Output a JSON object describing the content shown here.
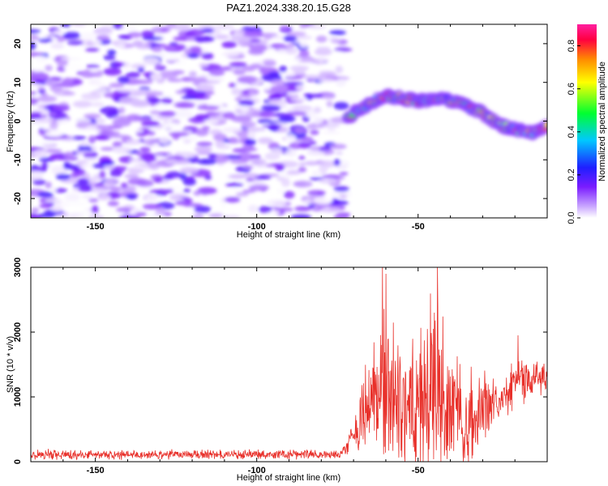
{
  "chart_data": [
    {
      "type": "heatmap",
      "title": "PAZ1.2024.338.20.15.G28",
      "xlabel": "Height of straight line (km)",
      "ylabel": "Frequency (Hz)",
      "xlim": [
        -170,
        -10
      ],
      "ylim": [
        -25,
        25
      ],
      "xticks": [
        -150,
        -100,
        -50
      ],
      "yticks": [
        -20,
        -10,
        0,
        10,
        20
      ],
      "colorbar": {
        "label": "Normalized spectral amplitude",
        "range": [
          0.0,
          0.9
        ],
        "ticks": [
          "0.0",
          "0.2",
          "0.4",
          "0.6",
          "0.8"
        ],
        "colormap": [
          "#ffffff",
          "#c9a6ff",
          "#7a1cff",
          "#1f1fff",
          "#00c8ff",
          "#00ff30",
          "#ffff00",
          "#ff8a00",
          "#ff0040",
          "#ff1fa0"
        ]
      },
      "noise_region": {
        "x": [
          -170,
          -73
        ],
        "amplitude_range": [
          0.0,
          0.2
        ]
      },
      "signal_track": [
        {
          "x": -72,
          "freq": 1
        },
        {
          "x": -66,
          "freq": 4
        },
        {
          "x": -60,
          "freq": 6.5
        },
        {
          "x": -55,
          "freq": 6
        },
        {
          "x": -50,
          "freq": 5
        },
        {
          "x": -45,
          "freq": 6
        },
        {
          "x": -40,
          "freq": 5.5
        },
        {
          "x": -35,
          "freq": 4
        },
        {
          "x": -30,
          "freq": 2
        },
        {
          "x": -25,
          "freq": -1
        },
        {
          "x": -20,
          "freq": -2
        },
        {
          "x": -15,
          "freq": -3
        },
        {
          "x": -10,
          "freq": -1.5
        }
      ],
      "signal_peak_amplitude": 0.85
    },
    {
      "type": "line",
      "xlabel": "Height of straight line (km)",
      "ylabel": "SNR (10 * v/v)",
      "xlim": [
        -170,
        -10
      ],
      "ylim": [
        0,
        3000
      ],
      "xticks": [
        -150,
        -100,
        -50
      ],
      "yticks": [
        0,
        1000,
        2000,
        3000
      ],
      "color": "#e8302a",
      "envelope": [
        {
          "x": -170,
          "mean": 110,
          "spread": 90
        },
        {
          "x": -74,
          "mean": 110,
          "spread": 90
        },
        {
          "x": -70,
          "mean": 400,
          "spread": 300
        },
        {
          "x": -66,
          "mean": 800,
          "spread": 900
        },
        {
          "x": -60,
          "mean": 1200,
          "spread": 1700
        },
        {
          "x": -55,
          "mean": 900,
          "spread": 1000
        },
        {
          "x": -50,
          "mean": 1000,
          "spread": 1400
        },
        {
          "x": -44,
          "mean": 1200,
          "spread": 1800
        },
        {
          "x": -40,
          "mean": 900,
          "spread": 1200
        },
        {
          "x": -35,
          "mean": 600,
          "spread": 900
        },
        {
          "x": -30,
          "mean": 800,
          "spread": 700
        },
        {
          "x": -25,
          "mean": 1000,
          "spread": 500
        },
        {
          "x": -20,
          "mean": 1300,
          "spread": 500
        },
        {
          "x": -15,
          "mean": 1200,
          "spread": 400
        },
        {
          "x": -10,
          "mean": 1300,
          "spread": 250
        }
      ],
      "peaks": [
        {
          "x": -61,
          "y": 3000
        },
        {
          "x": -60,
          "y": 2900
        },
        {
          "x": -44,
          "y": 3000
        },
        {
          "x": -45,
          "y": 2300
        },
        {
          "x": -19,
          "y": 1950
        }
      ]
    }
  ]
}
